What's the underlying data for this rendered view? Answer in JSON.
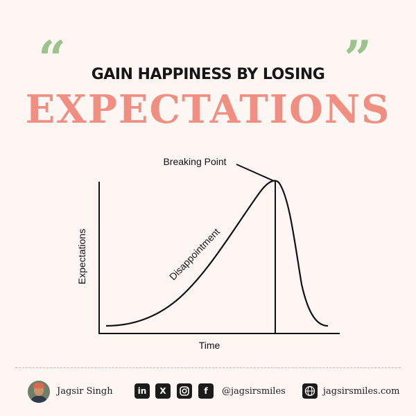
{
  "header": {
    "open_quote": "“",
    "close_quote": "”",
    "headline": "GAIN HAPPINESS BY LOSING",
    "title": "EXPECTATIONS"
  },
  "diagram": {
    "y_axis_label": "Expectations",
    "x_axis_label": "Time",
    "peak_label": "Breaking Point",
    "curve_label": "Disappointment"
  },
  "footer": {
    "author_name": "Jagsir Singh",
    "social_icons": [
      "linkedin-icon",
      "x-icon",
      "instagram-icon",
      "facebook-icon"
    ],
    "linkedin_glyph": "in",
    "x_glyph": "X",
    "facebook_glyph": "f",
    "handle": "@jagsirsmiles",
    "website": "jagsirsmiles.com"
  },
  "colors": {
    "background": "#fdf6f3",
    "accent_green": "#9cc38d",
    "accent_coral": "#f08f81",
    "divider": "#e4a79a"
  }
}
